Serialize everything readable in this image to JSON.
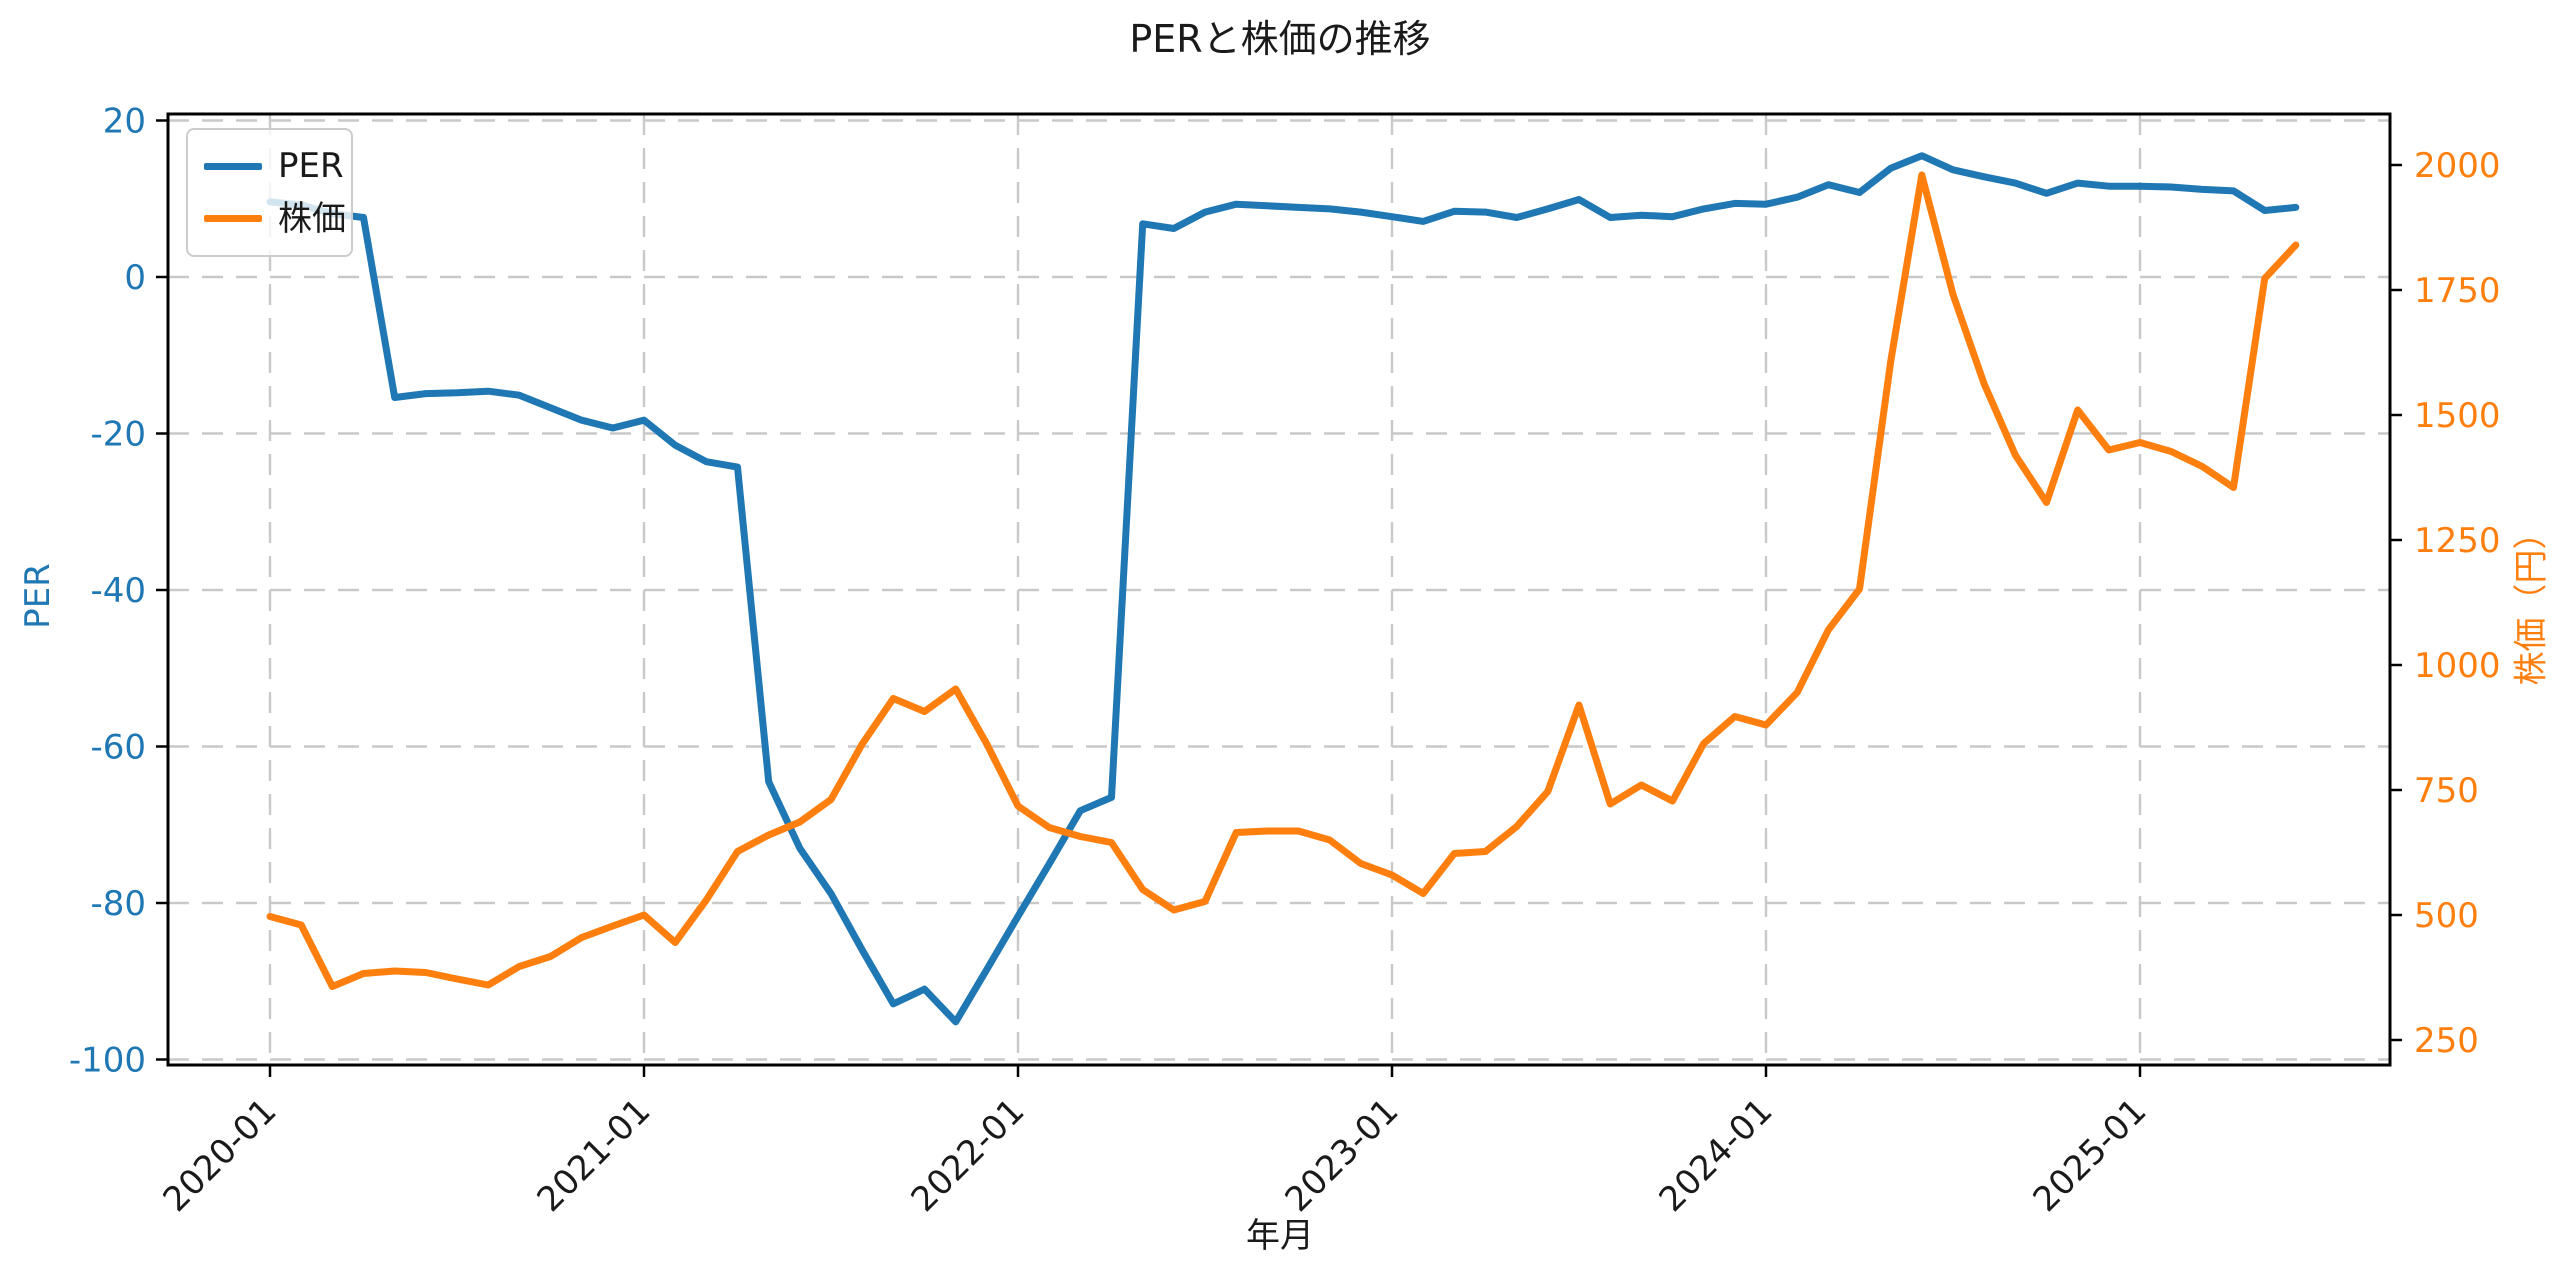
{
  "figure": {
    "title": "PERと株価の推移",
    "xlabel": "年月",
    "ylabel_left": "PER",
    "ylabel_right": "株価（円）"
  },
  "legend": {
    "entries": [
      {
        "label": "PER",
        "color": "#1f77b4"
      },
      {
        "label": "株価",
        "color": "#ff7f0e"
      }
    ]
  },
  "chart_data": {
    "type": "line",
    "title": "PERと株価の推移",
    "xlabel": "年月",
    "ylabel_left": "PER",
    "ylabel_right": "株価（円）",
    "x_tick_labels": [
      "2020-01",
      "2021-01",
      "2022-01",
      "2023-01",
      "2024-01",
      "2025-01"
    ],
    "y_ticks_left": [
      20,
      0,
      -20,
      -40,
      -60,
      -80,
      -100
    ],
    "y_ticks_right": [
      2000,
      1750,
      1500,
      1250,
      1000,
      750,
      500,
      250
    ],
    "grid": true,
    "legend_position": "upper left",
    "axis_colors": {
      "left": "#1f77b4",
      "right": "#ff7f0e"
    },
    "categories": [
      "2020-01",
      "2020-02",
      "2020-03",
      "2020-04",
      "2020-05",
      "2020-06",
      "2020-07",
      "2020-08",
      "2020-09",
      "2020-10",
      "2020-11",
      "2020-12",
      "2021-01",
      "2021-02",
      "2021-03",
      "2021-04",
      "2021-05",
      "2021-06",
      "2021-07",
      "2021-08",
      "2021-09",
      "2021-10",
      "2021-11",
      "2021-12",
      "2022-01",
      "2022-02",
      "2022-03",
      "2022-04",
      "2022-05",
      "2022-06",
      "2022-07",
      "2022-08",
      "2022-09",
      "2022-10",
      "2022-11",
      "2022-12",
      "2023-01",
      "2023-02",
      "2023-03",
      "2023-04",
      "2023-05",
      "2023-06",
      "2023-07",
      "2023-08",
      "2023-09",
      "2023-10",
      "2023-11",
      "2023-12",
      "2024-01",
      "2024-02",
      "2024-03",
      "2024-04",
      "2024-05",
      "2024-06",
      "2024-07",
      "2024-08",
      "2024-09",
      "2024-10",
      "2024-11",
      "2024-12",
      "2025-01",
      "2025-02",
      "2025-03",
      "2025-04",
      "2025-05",
      "2025-06"
    ],
    "series": [
      {
        "name": "PER",
        "axis": "left",
        "color": "#1f77b4",
        "values": [
          9.6,
          9.2,
          8.1,
          7.6,
          -15.4,
          -14.9,
          -14.8,
          -14.6,
          -15.1,
          -16.7,
          -18.3,
          -19.3,
          -18.3,
          -21.5,
          -23.6,
          -24.3,
          -64.5,
          -73.0,
          -78.8,
          -86.0,
          -92.9,
          -91.0,
          -95.2,
          -88.5,
          -81.7,
          -75.0,
          -68.2,
          -66.5,
          6.8,
          6.2,
          8.3,
          9.3,
          9.1,
          8.9,
          8.7,
          8.3,
          7.7,
          7.1,
          8.4,
          8.3,
          7.6,
          8.7,
          9.9,
          7.6,
          7.9,
          7.7,
          8.7,
          9.4,
          9.3,
          10.2,
          11.8,
          10.8,
          13.9,
          15.5,
          13.7,
          12.8,
          12.0,
          10.7,
          12.0,
          11.6,
          11.6,
          11.5,
          11.2,
          11.0,
          8.5,
          8.9
        ]
      },
      {
        "name": "株価",
        "axis": "right",
        "color": "#ff7f0e",
        "values": [
          497,
          480,
          357,
          383,
          388,
          385,
          372,
          360,
          397,
          417,
          455,
          478,
          500,
          445,
          530,
          627,
          660,
          686,
          731,
          842,
          933,
          907,
          952,
          842,
          718,
          675,
          657,
          645,
          551,
          510,
          527,
          665,
          668,
          668,
          650,
          603,
          580,
          543,
          623,
          627,
          677,
          747,
          920,
          722,
          760,
          728,
          843,
          897,
          880,
          945,
          1070,
          1152,
          1607,
          1980,
          1741,
          1562,
          1420,
          1325,
          1510,
          1430,
          1445,
          1427,
          1397,
          1355,
          1773,
          1840
        ]
      }
    ],
    "ylim_left": [
      -100.5,
      20.6
    ],
    "ylim_right": [
      207,
      2098
    ]
  }
}
